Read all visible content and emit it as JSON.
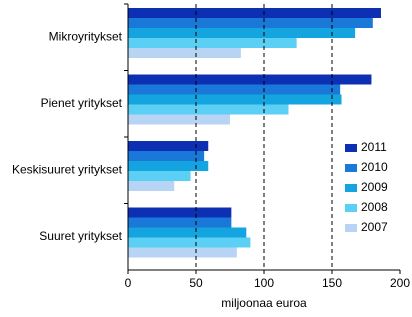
{
  "chart_data": {
    "type": "hbar",
    "categories": [
      "Mikroyritykset",
      "Pienet yritykset",
      "Keskisuuret yritykset",
      "Suuret yritykset"
    ],
    "series": [
      {
        "name": "2011",
        "color": "#0c2fb4",
        "values": [
          186,
          179,
          59,
          76
        ]
      },
      {
        "name": "2010",
        "color": "#1a78d8",
        "values": [
          180,
          156,
          56,
          76
        ]
      },
      {
        "name": "2009",
        "color": "#14a5e0",
        "values": [
          167,
          157,
          59,
          87
        ]
      },
      {
        "name": "2008",
        "color": "#5ccff5",
        "values": [
          124,
          118,
          46,
          90
        ]
      },
      {
        "name": "2007",
        "color": "#b8d4f4",
        "values": [
          83,
          75,
          34,
          80
        ]
      }
    ],
    "xlabel": "miljoonaa euroa",
    "xlim": [
      0,
      200
    ],
    "xticks": [
      0,
      50,
      100,
      150,
      200
    ],
    "grid": true,
    "legend": "right"
  }
}
